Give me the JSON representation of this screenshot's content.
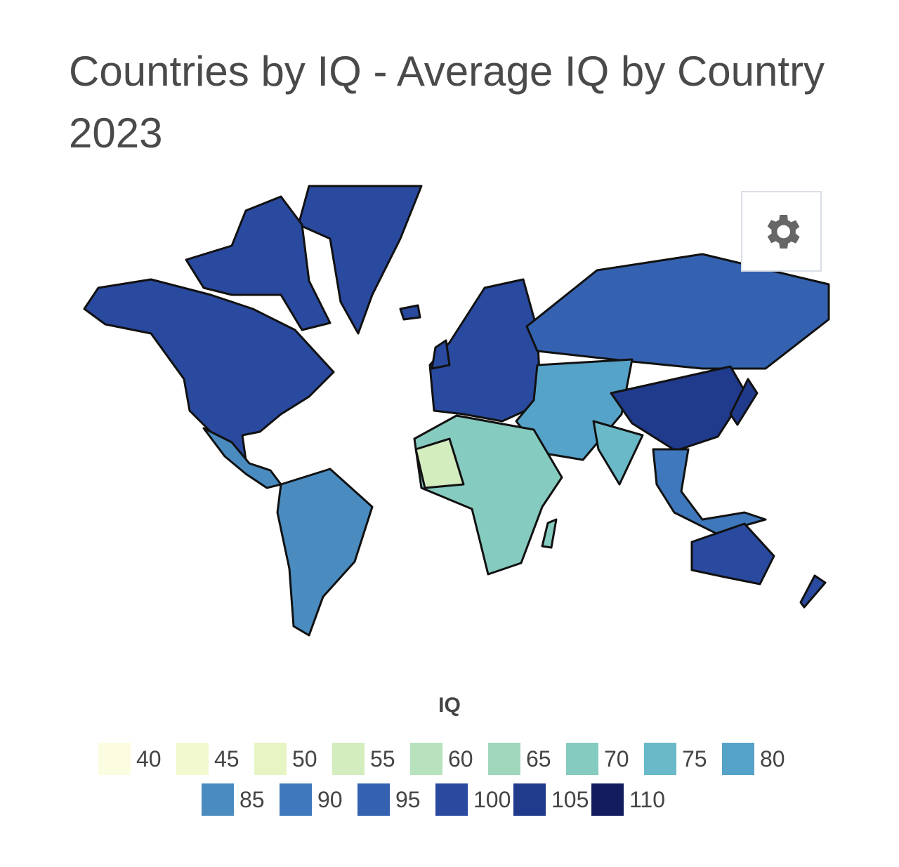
{
  "header": {
    "title": "Countries by IQ - Average IQ by Country 2023"
  },
  "legend": {
    "title": "IQ",
    "items": [
      {
        "value": 40,
        "color": "#fcfde0"
      },
      {
        "value": 45,
        "color": "#f3f9cf"
      },
      {
        "value": 50,
        "color": "#e7f4c4"
      },
      {
        "value": 55,
        "color": "#d3edbf"
      },
      {
        "value": 60,
        "color": "#b8e2bd"
      },
      {
        "value": 65,
        "color": "#9fd6bc"
      },
      {
        "value": 70,
        "color": "#86cbbf"
      },
      {
        "value": 75,
        "color": "#6ab9c8"
      },
      {
        "value": 80,
        "color": "#56a3c9"
      },
      {
        "value": 85,
        "color": "#4a8cc0"
      },
      {
        "value": 90,
        "color": "#3f78bc"
      },
      {
        "value": 95,
        "color": "#3462b0"
      },
      {
        "value": 100,
        "color": "#2a4aa0"
      },
      {
        "value": 105,
        "color": "#203a8c"
      },
      {
        "value": 110,
        "color": "#121c5e"
      }
    ]
  }
}
